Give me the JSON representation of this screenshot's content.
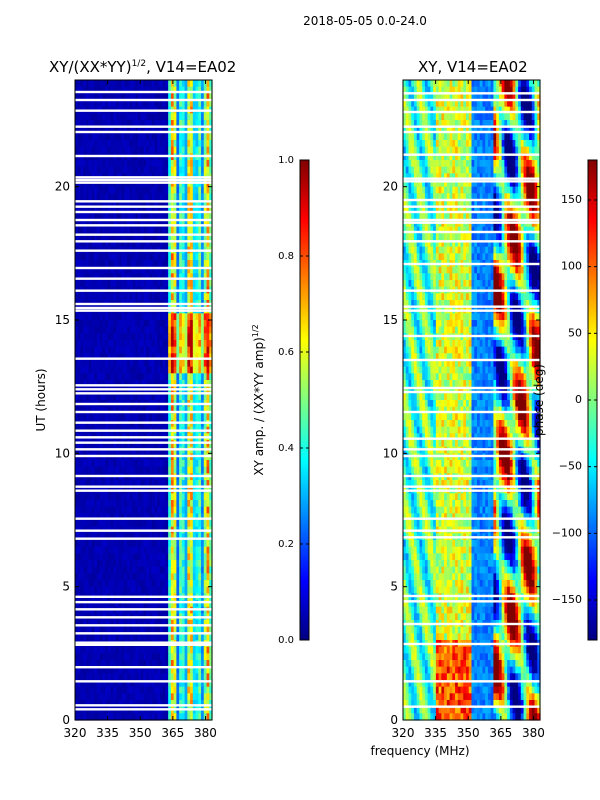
{
  "suptitle": "2018-05-05 0.0-24.0",
  "chart_data": [
    {
      "type": "heatmap",
      "title_main": "XY/(XX*YY)",
      "title_sup": "1/2",
      "title_tail": ", V14=EA02",
      "xlabel": "",
      "ylabel": "UT (hours)",
      "x": {
        "range": [
          320,
          383
        ],
        "ticks": [
          320,
          335,
          350,
          365,
          380
        ]
      },
      "y": {
        "range": [
          0,
          24
        ],
        "ticks": [
          0,
          5,
          10,
          15,
          20
        ]
      },
      "colorbar": {
        "label_main": "XY amp. / (XX*YY amp)",
        "label_sup": "1/2",
        "range": [
          0,
          1
        ],
        "ticks": [
          "0.0",
          "0.2",
          "0.4",
          "0.6",
          "0.8",
          "1.0"
        ]
      },
      "gap_hours": [
        0.4,
        0.55,
        1.45,
        1.98,
        2.82,
        2.9,
        3.25,
        3.55,
        3.85,
        4.15,
        4.42,
        4.62,
        6.8,
        7.1,
        7.55,
        8.6,
        8.75,
        9.15,
        9.9,
        10.15,
        10.4,
        10.6,
        10.85,
        11.15,
        11.55,
        11.85,
        12.25,
        12.4,
        12.55,
        13.55,
        15.35,
        15.45,
        15.6,
        16.1,
        16.55,
        16.95,
        17.6,
        17.95,
        18.2,
        18.55,
        18.75,
        19.05,
        19.25,
        19.45,
        20.15,
        20.25,
        20.35,
        21.15,
        22.05,
        22.25,
        22.85,
        23.25,
        23.55
      ]
    },
    {
      "type": "heatmap",
      "title": "XY, V14=EA02",
      "xlabel": "frequency (MHz)",
      "ylabel": "",
      "x": {
        "range": [
          320,
          383
        ],
        "ticks": [
          320,
          335,
          350,
          365,
          380
        ]
      },
      "y": {
        "range": [
          0,
          24
        ],
        "ticks": [
          0,
          5,
          10,
          15,
          20
        ]
      },
      "colorbar": {
        "label": "phase (deg)",
        "range": [
          -180,
          180
        ],
        "ticks": [
          "−150",
          "−100",
          "−50",
          "0",
          "50",
          "100",
          "150"
        ]
      },
      "gap_hours": [
        0.5,
        1.45,
        2.85,
        3.6,
        4.45,
        4.65,
        6.85,
        7.1,
        7.55,
        8.6,
        8.75,
        9.15,
        9.9,
        10.15,
        10.55,
        11.55,
        12.3,
        12.45,
        13.5,
        14.4,
        15.35,
        15.5,
        16.1,
        17.1,
        17.95,
        18.3,
        18.65,
        18.75,
        19.05,
        19.25,
        19.5,
        20.2,
        20.3,
        21.2,
        22.05,
        22.25,
        22.8,
        23.25,
        23.5
      ]
    }
  ]
}
